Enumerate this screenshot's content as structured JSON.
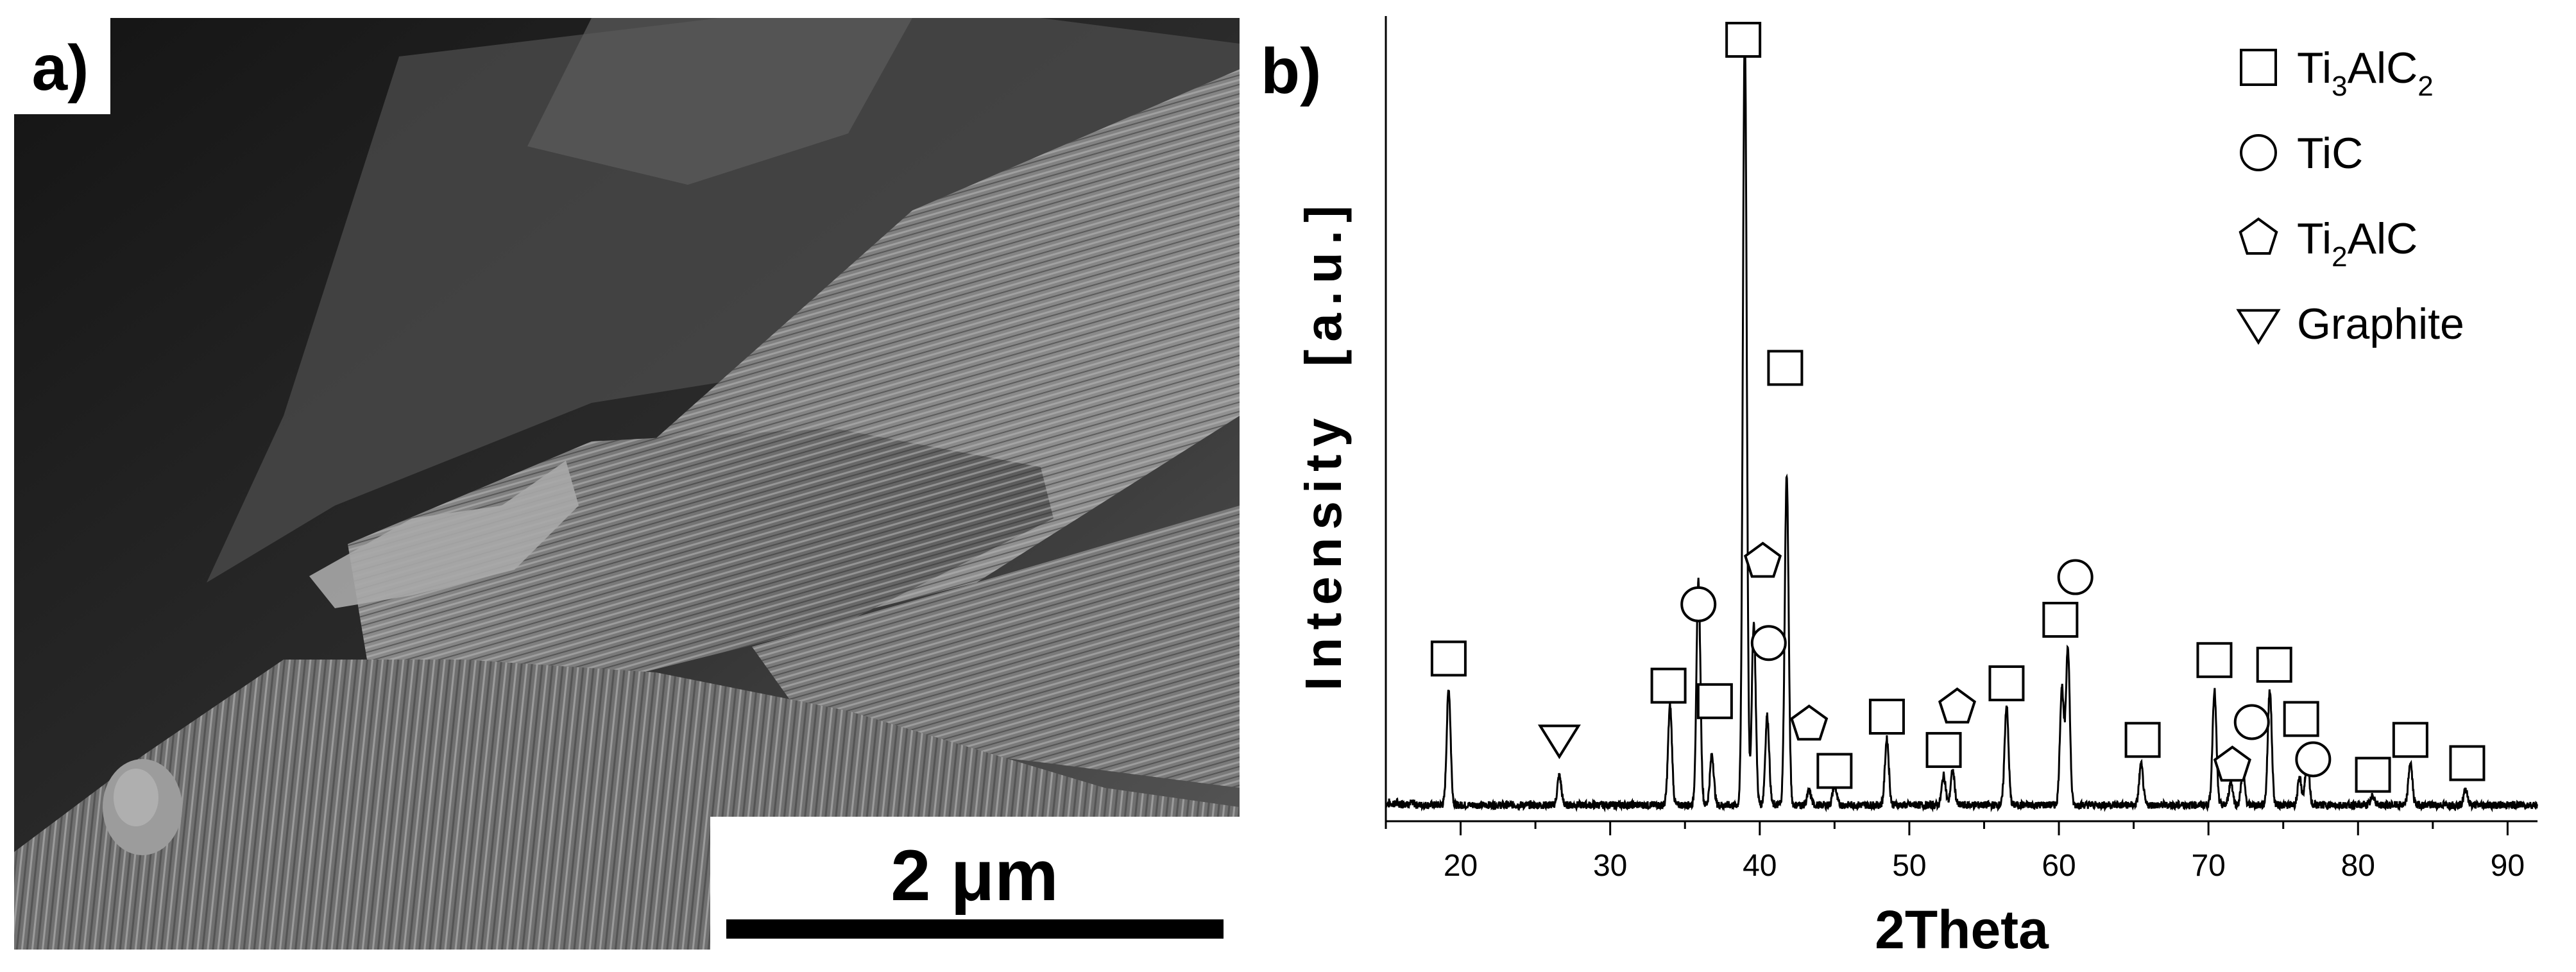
{
  "panel_a": {
    "label": "a)",
    "scale_bar_text": "2 μm"
  },
  "chart_data": {
    "type": "line",
    "panel_label": "b)",
    "title": "",
    "xlabel": "2Theta",
    "ylabel": "Intensity  [a.u.]",
    "xlim": [
      15,
      92
    ],
    "ylim": [
      0,
      1000
    ],
    "xticks": [
      20,
      30,
      40,
      50,
      60,
      70,
      80,
      90
    ],
    "yticks": [],
    "grid": false,
    "legend_position": "top-right",
    "legend": [
      {
        "marker": "square",
        "base": "Ti",
        "sub1": "3",
        "mid": "AlC",
        "sub2": "2"
      },
      {
        "marker": "circle",
        "base": "TiC",
        "sub1": "",
        "mid": "",
        "sub2": ""
      },
      {
        "marker": "pentagon",
        "base": "Ti",
        "sub1": "2",
        "mid": "AlC",
        "sub2": ""
      },
      {
        "marker": "triangle-down",
        "base": "Graphite",
        "sub1": "",
        "mid": "",
        "sub2": ""
      }
    ],
    "peaks": [
      {
        "x": 19.2,
        "y": 150
      },
      {
        "x": 26.6,
        "y": 38
      },
      {
        "x": 34.0,
        "y": 128
      },
      {
        "x": 35.9,
        "y": 290
      },
      {
        "x": 36.8,
        "y": 65
      },
      {
        "x": 39.0,
        "y": 1000
      },
      {
        "x": 39.6,
        "y": 235
      },
      {
        "x": 40.5,
        "y": 115
      },
      {
        "x": 41.8,
        "y": 425
      },
      {
        "x": 43.3,
        "y": 18
      },
      {
        "x": 45.0,
        "y": 26
      },
      {
        "x": 48.5,
        "y": 85
      },
      {
        "x": 52.3,
        "y": 38
      },
      {
        "x": 52.9,
        "y": 44
      },
      {
        "x": 56.5,
        "y": 128
      },
      {
        "x": 60.2,
        "y": 152
      },
      {
        "x": 60.6,
        "y": 205
      },
      {
        "x": 65.5,
        "y": 52
      },
      {
        "x": 70.4,
        "y": 148
      },
      {
        "x": 71.5,
        "y": 30
      },
      {
        "x": 72.3,
        "y": 40
      },
      {
        "x": 74.1,
        "y": 150
      },
      {
        "x": 76.1,
        "y": 34
      },
      {
        "x": 76.6,
        "y": 62
      },
      {
        "x": 81.0,
        "y": 12
      },
      {
        "x": 83.5,
        "y": 55
      },
      {
        "x": 87.2,
        "y": 20
      }
    ],
    "phase_markers": [
      {
        "phase": "Ti3AlC2",
        "marker": "square",
        "x": 19.2,
        "y": 200
      },
      {
        "phase": "Graphite",
        "marker": "triangle-down",
        "x": 26.6,
        "y": 97
      },
      {
        "phase": "Ti3AlC2",
        "marker": "square",
        "x": 33.9,
        "y": 165
      },
      {
        "phase": "TiC",
        "marker": "circle",
        "x": 35.9,
        "y": 270
      },
      {
        "phase": "Ti3AlC2",
        "marker": "square",
        "x": 37.0,
        "y": 145
      },
      {
        "phase": "Ti3AlC2",
        "marker": "square",
        "x": 38.9,
        "y": 1000
      },
      {
        "phase": "Ti2AlC",
        "marker": "pentagon",
        "x": 40.2,
        "y": 325
      },
      {
        "phase": "TiC",
        "marker": "circle",
        "x": 40.6,
        "y": 220
      },
      {
        "phase": "Ti3AlC2",
        "marker": "square",
        "x": 41.7,
        "y": 575
      },
      {
        "phase": "Ti2AlC",
        "marker": "pentagon",
        "x": 43.3,
        "y": 115
      },
      {
        "phase": "Ti3AlC2",
        "marker": "square",
        "x": 45.0,
        "y": 55
      },
      {
        "phase": "Ti3AlC2",
        "marker": "square",
        "x": 48.5,
        "y": 125
      },
      {
        "phase": "Ti3AlC2",
        "marker": "square",
        "x": 52.3,
        "y": 82
      },
      {
        "phase": "Ti2AlC",
        "marker": "pentagon",
        "x": 53.2,
        "y": 137
      },
      {
        "phase": "Ti3AlC2",
        "marker": "square",
        "x": 56.5,
        "y": 168
      },
      {
        "phase": "Ti3AlC2",
        "marker": "square",
        "x": 60.1,
        "y": 250
      },
      {
        "phase": "TiC",
        "marker": "circle",
        "x": 61.1,
        "y": 305
      },
      {
        "phase": "Ti3AlC2",
        "marker": "square",
        "x": 65.6,
        "y": 95
      },
      {
        "phase": "Ti3AlC2",
        "marker": "square",
        "x": 70.4,
        "y": 198
      },
      {
        "phase": "Ti2AlC",
        "marker": "pentagon",
        "x": 71.6,
        "y": 62
      },
      {
        "phase": "TiC",
        "marker": "circle",
        "x": 72.9,
        "y": 118
      },
      {
        "phase": "Ti3AlC2",
        "marker": "square",
        "x": 74.4,
        "y": 192
      },
      {
        "phase": "Ti3AlC2",
        "marker": "square",
        "x": 76.2,
        "y": 122
      },
      {
        "phase": "TiC",
        "marker": "circle",
        "x": 77.0,
        "y": 70
      },
      {
        "phase": "Ti3AlC2",
        "marker": "square",
        "x": 81.0,
        "y": 50
      },
      {
        "phase": "Ti3AlC2",
        "marker": "square",
        "x": 83.5,
        "y": 95
      },
      {
        "phase": "Ti3AlC2",
        "marker": "square",
        "x": 87.3,
        "y": 65
      }
    ]
  }
}
